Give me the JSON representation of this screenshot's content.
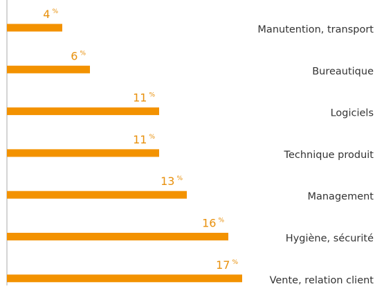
{
  "chart_data": {
    "type": "bar",
    "orientation": "horizontal",
    "categories": [
      "Manutention, transport",
      "Bureautique",
      "Logiciels",
      "Technique produit",
      "Management",
      "Hygiène, sécurité",
      "Vente, relation client"
    ],
    "values": [
      4,
      6,
      11,
      11,
      13,
      16,
      17
    ],
    "unit": "%",
    "color": "#f39200"
  }
}
